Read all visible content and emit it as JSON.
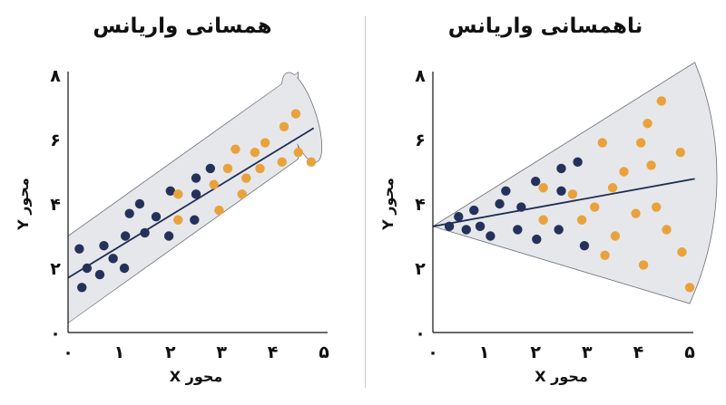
{
  "chart_data": [
    {
      "type": "scatter",
      "title": "همسانی واریانس",
      "xlabel": "محور X",
      "ylabel": "محور Y",
      "xlim": [
        0,
        5
      ],
      "ylim": [
        0,
        8
      ],
      "x_tick_labels": [
        "۰",
        "۱",
        "۲",
        "۳",
        "۴",
        "۵"
      ],
      "y_tick_labels": [
        "۰",
        "۲",
        "۴",
        "۶",
        "۸"
      ],
      "colors": {
        "series_a": "#24325b",
        "series_b": "#e9a23b",
        "band": "#e6e7ea",
        "line": "#1e2d57"
      },
      "band": {
        "type": "parallel",
        "upper_intercept": 3.0,
        "upper_slope": 1.05,
        "lower_intercept": 0.3,
        "lower_slope": 1.05
      },
      "fit_line": {
        "intercept": 1.7,
        "slope": 0.97,
        "x_range": [
          0,
          4.8
        ]
      },
      "series": [
        {
          "values": [
            [
              0.22,
              2.6
            ],
            [
              0.27,
              1.4
            ],
            [
              0.37,
              2.0
            ],
            [
              0.62,
              1.8
            ],
            [
              0.7,
              2.7
            ],
            [
              0.88,
              2.3
            ],
            [
              1.1,
              2.0
            ],
            [
              1.12,
              3.0
            ],
            [
              1.2,
              3.7
            ],
            [
              1.4,
              4.0
            ],
            [
              1.5,
              3.1
            ],
            [
              1.72,
              3.6
            ],
            [
              1.97,
              3.0
            ],
            [
              2.0,
              4.4
            ],
            [
              2.47,
              3.5
            ],
            [
              2.5,
              4.3
            ],
            [
              2.5,
              4.8
            ],
            [
              2.78,
              5.1
            ]
          ]
        },
        {
          "values": [
            [
              2.15,
              4.3
            ],
            [
              2.15,
              3.5
            ],
            [
              2.85,
              4.6
            ],
            [
              2.95,
              3.8
            ],
            [
              3.12,
              5.1
            ],
            [
              3.27,
              5.7
            ],
            [
              3.4,
              4.3
            ],
            [
              3.48,
              4.8
            ],
            [
              3.65,
              5.6
            ],
            [
              3.75,
              5.1
            ],
            [
              3.85,
              5.9
            ],
            [
              4.18,
              5.3
            ],
            [
              4.22,
              6.4
            ],
            [
              4.45,
              6.8
            ],
            [
              4.5,
              5.6
            ],
            [
              4.75,
              5.3
            ]
          ]
        }
      ]
    },
    {
      "type": "scatter",
      "title": "ناهمسانی واریانس",
      "xlabel": "محور X",
      "ylabel": "محور Y",
      "xlim": [
        0,
        5
      ],
      "ylim": [
        0,
        8
      ],
      "x_tick_labels": [
        "۰",
        "۱",
        "۲",
        "۳",
        "۴",
        "۵"
      ],
      "y_tick_labels": [
        "۰",
        "۲",
        "۴",
        "۶",
        "۸"
      ],
      "colors": {
        "series_a": "#24325b",
        "series_b": "#e9a23b",
        "band": "#e6e7ea",
        "line": "#1e2d57"
      },
      "band": {
        "type": "fan",
        "origin": [
          0,
          3.3
        ],
        "upper_end": [
          5.1,
          8.4
        ],
        "lower_end": [
          5.0,
          0.9
        ]
      },
      "fit_line": {
        "intercept": 3.3,
        "slope": 0.29,
        "x_range": [
          0,
          5.1
        ]
      },
      "series": [
        {
          "values": [
            [
              0.32,
              3.3
            ],
            [
              0.5,
              3.6
            ],
            [
              0.65,
              3.2
            ],
            [
              0.8,
              3.8
            ],
            [
              0.92,
              3.3
            ],
            [
              1.12,
              3.0
            ],
            [
              1.3,
              4.0
            ],
            [
              1.42,
              4.4
            ],
            [
              1.65,
              3.2
            ],
            [
              1.72,
              3.9
            ],
            [
              2.0,
              4.7
            ],
            [
              2.02,
              2.9
            ],
            [
              2.45,
              3.2
            ],
            [
              2.5,
              4.4
            ],
            [
              2.5,
              5.1
            ],
            [
              2.82,
              5.3
            ],
            [
              2.95,
              2.7
            ]
          ]
        },
        {
          "values": [
            [
              2.15,
              4.5
            ],
            [
              2.15,
              3.5
            ],
            [
              2.72,
              4.3
            ],
            [
              2.9,
              3.5
            ],
            [
              3.15,
              3.9
            ],
            [
              3.3,
              5.9
            ],
            [
              3.35,
              2.4
            ],
            [
              3.5,
              4.5
            ],
            [
              3.55,
              3.0
            ],
            [
              3.72,
              5.0
            ],
            [
              3.95,
              3.7
            ],
            [
              4.05,
              5.9
            ],
            [
              4.1,
              2.1
            ],
            [
              4.18,
              6.5
            ],
            [
              4.25,
              5.2
            ],
            [
              4.35,
              3.9
            ],
            [
              4.45,
              7.2
            ],
            [
              4.55,
              3.2
            ],
            [
              4.82,
              5.6
            ],
            [
              4.85,
              2.5
            ],
            [
              5.0,
              1.4
            ]
          ]
        }
      ]
    }
  ]
}
